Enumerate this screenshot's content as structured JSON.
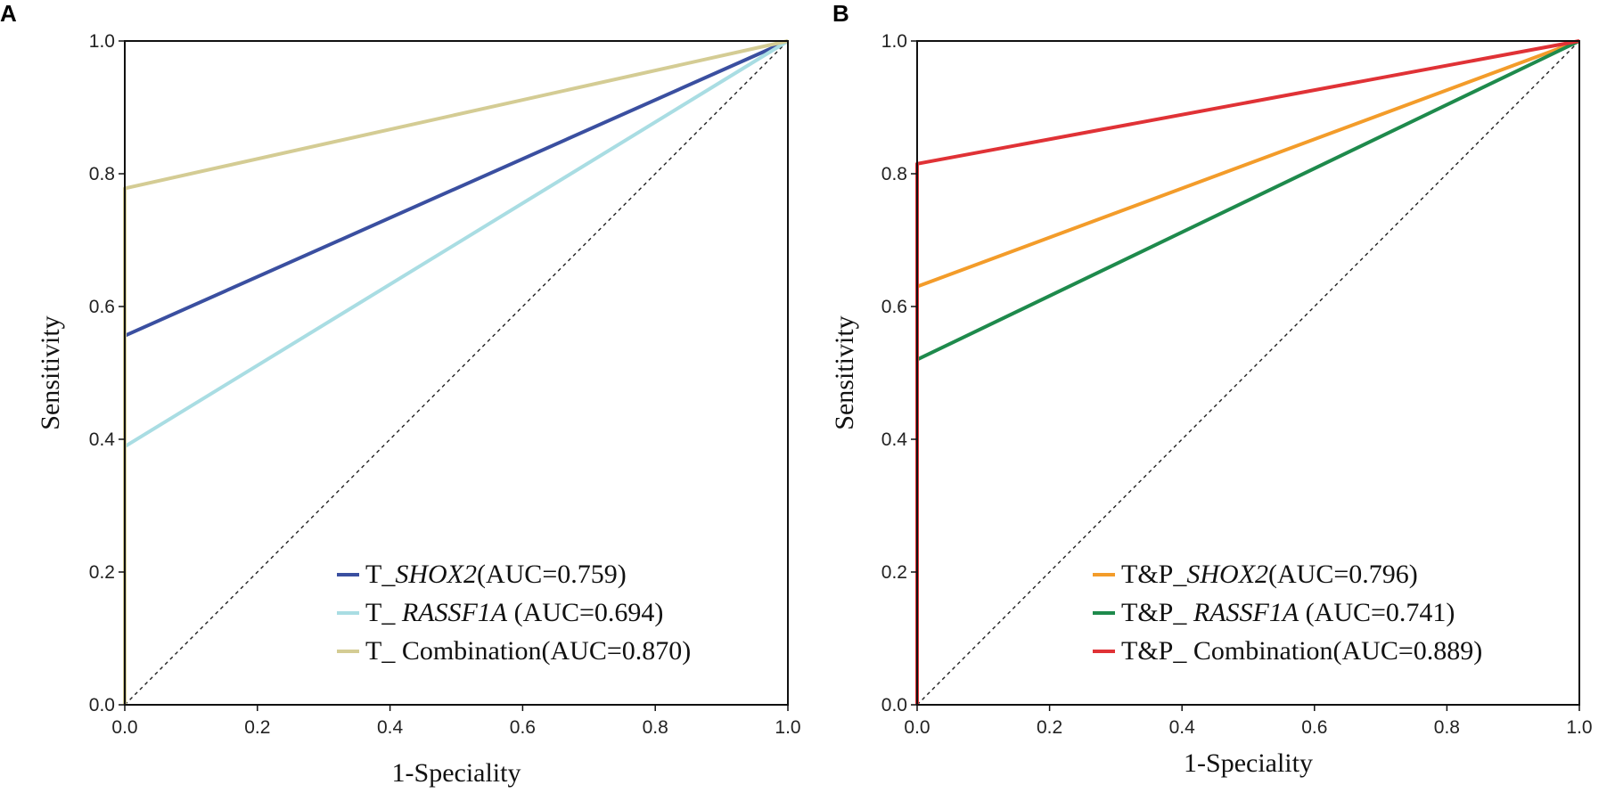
{
  "chart_data": [
    {
      "type": "line",
      "panel_label": "A",
      "xlabel": "1-Speciality",
      "ylabel": "Sensitivity",
      "xlim": [
        0,
        1
      ],
      "ylim": [
        0,
        1
      ],
      "x_ticks": [
        "0.0",
        "0.2",
        "0.4",
        "0.6",
        "0.8",
        "1.0"
      ],
      "y_ticks": [
        "0.0",
        "0.2",
        "0.4",
        "0.6",
        "0.8",
        "1.0"
      ],
      "legend_position": "bottom-right",
      "reference_line": true,
      "series": [
        {
          "name_prefix": "T_",
          "name_gene": "SHOX2",
          "name_suffix": "(AUC=0.759)",
          "color": "#3a4fa0",
          "x": [
            0,
            0,
            1
          ],
          "y": [
            0,
            0.556,
            1
          ]
        },
        {
          "name_prefix": "T_ ",
          "name_gene": "RASSF1A",
          "name_suffix": " (AUC=0.694)",
          "color": "#a9dde3",
          "x": [
            0,
            0,
            1
          ],
          "y": [
            0,
            0.389,
            1
          ]
        },
        {
          "name_prefix": "T_ ",
          "name_gene": "",
          "name_suffix": "Combination(AUC=0.870)",
          "color": "#d4cc94",
          "x": [
            0,
            0,
            1
          ],
          "y": [
            0,
            0.778,
            1
          ]
        }
      ]
    },
    {
      "type": "line",
      "panel_label": "B",
      "xlabel": "1-Speciality",
      "ylabel": "Sensitivity",
      "xlim": [
        0,
        1
      ],
      "ylim": [
        0,
        1
      ],
      "x_ticks": [
        "0.0",
        "0.2",
        "0.4",
        "0.6",
        "0.8",
        "1.0"
      ],
      "y_ticks": [
        "0.0",
        "0.2",
        "0.4",
        "0.6",
        "0.8",
        "1.0"
      ],
      "legend_position": "bottom-right",
      "reference_line": true,
      "series": [
        {
          "name_prefix": "T&P_",
          "name_gene": "SHOX2",
          "name_suffix": "(AUC=0.796)",
          "color": "#f39c2a",
          "x": [
            0,
            0,
            1
          ],
          "y": [
            0,
            0.63,
            1
          ]
        },
        {
          "name_prefix": "T&P_ ",
          "name_gene": "RASSF1A",
          "name_suffix": " (AUC=0.741)",
          "color": "#1e8a4c",
          "x": [
            0,
            0,
            1
          ],
          "y": [
            0,
            0.52,
            1
          ]
        },
        {
          "name_prefix": "T&P_ ",
          "name_gene": "",
          "name_suffix": "Combination(AUC=0.889)",
          "color": "#e03236",
          "x": [
            0,
            0,
            1
          ],
          "y": [
            0,
            0.815,
            1
          ]
        }
      ]
    }
  ]
}
